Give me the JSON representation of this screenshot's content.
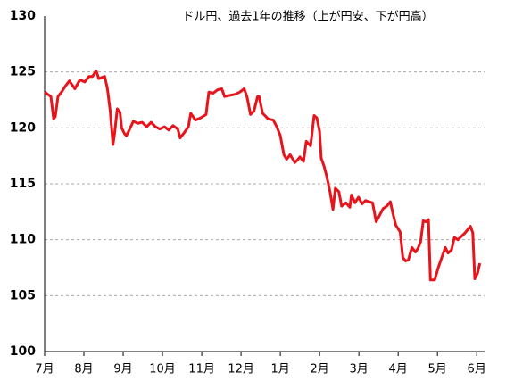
{
  "chart_data": {
    "type": "line",
    "title": "ドル円、過去1年の推移（上が円安、下が円高）",
    "x": [
      0,
      0.16,
      0.23,
      0.27,
      0.34,
      0.45,
      0.52,
      0.63,
      0.77,
      0.9,
      1.02,
      1.13,
      1.22,
      1.31,
      1.38,
      1.53,
      1.6,
      1.67,
      1.74,
      1.78,
      1.85,
      1.92,
      1.96,
      2.03,
      2.08,
      2.14,
      2.26,
      2.37,
      2.48,
      2.6,
      2.71,
      2.82,
      2.93,
      3.05,
      3.16,
      3.27,
      3.39,
      3.45,
      3.54,
      3.66,
      3.72,
      3.84,
      3.97,
      4.11,
      4.18,
      4.29,
      4.4,
      4.51,
      4.58,
      4.7,
      4.85,
      4.97,
      5.08,
      5.15,
      5.24,
      5.33,
      5.42,
      5.46,
      5.55,
      5.69,
      5.82,
      5.91,
      6.0,
      6.09,
      6.16,
      6.25,
      6.37,
      6.43,
      6.5,
      6.59,
      6.66,
      6.77,
      6.86,
      6.93,
      7.0,
      7.04,
      7.11,
      7.18,
      7.27,
      7.34,
      7.4,
      7.49,
      7.56,
      7.67,
      7.77,
      7.81,
      7.9,
      7.99,
      8.08,
      8.17,
      8.26,
      8.35,
      8.44,
      8.53,
      8.62,
      8.71,
      8.8,
      8.87,
      8.94,
      9.05,
      9.12,
      9.19,
      9.26,
      9.35,
      9.44,
      9.5,
      9.57,
      9.64,
      9.71,
      9.77,
      9.82,
      9.93,
      10.02,
      10.11,
      10.2,
      10.27,
      10.36,
      10.43,
      10.52,
      10.61,
      10.7,
      10.77,
      10.84,
      10.9,
      10.95,
      11.02,
      11.08
    ],
    "series": [
      {
        "color": "#e8141c",
        "values": [
          123.2,
          122.8,
          120.8,
          121.0,
          122.8,
          123.3,
          123.7,
          124.2,
          123.5,
          124.3,
          124.1,
          124.6,
          124.6,
          125.1,
          124.4,
          124.6,
          123.5,
          121.5,
          118.5,
          119.5,
          121.7,
          121.4,
          120.0,
          119.5,
          119.3,
          119.7,
          120.6,
          120.4,
          120.5,
          120.1,
          120.5,
          120.1,
          119.9,
          120.1,
          119.8,
          120.2,
          119.9,
          119.1,
          119.5,
          120.1,
          121.3,
          120.7,
          120.9,
          121.2,
          123.2,
          123.1,
          123.4,
          123.5,
          122.8,
          122.9,
          123.0,
          123.2,
          123.5,
          122.8,
          121.2,
          121.5,
          122.8,
          122.8,
          121.3,
          120.8,
          120.7,
          120.1,
          119.3,
          117.6,
          117.2,
          117.6,
          116.9,
          117.1,
          117.4,
          117.0,
          118.8,
          118.4,
          121.1,
          120.9,
          119.7,
          117.3,
          116.6,
          115.7,
          114.2,
          112.7,
          114.6,
          114.3,
          113.0,
          113.3,
          112.9,
          114.0,
          113.3,
          113.8,
          113.2,
          113.5,
          113.4,
          113.3,
          111.6,
          112.2,
          112.8,
          113.0,
          113.4,
          112.3,
          111.3,
          110.7,
          108.4,
          108.1,
          108.2,
          109.3,
          108.9,
          109.2,
          109.8,
          111.7,
          111.6,
          111.8,
          106.4,
          106.4,
          107.5,
          108.4,
          109.3,
          108.8,
          109.1,
          110.2,
          110.0,
          110.3,
          110.6,
          110.9,
          111.2,
          110.6,
          106.5,
          107.0,
          107.9
        ]
      }
    ],
    "xlim": [
      0,
      11.2
    ],
    "xticks": [
      {
        "value": 0,
        "label": "7月"
      },
      {
        "value": 1,
        "label": "8月"
      },
      {
        "value": 2,
        "label": "9月"
      },
      {
        "value": 3,
        "label": "10月"
      },
      {
        "value": 4,
        "label": "11月"
      },
      {
        "value": 5,
        "label": "12月"
      },
      {
        "value": 6,
        "label": "1月"
      },
      {
        "value": 7,
        "label": "2月"
      },
      {
        "value": 8,
        "label": "3月"
      },
      {
        "value": 9,
        "label": "4月"
      },
      {
        "value": 10,
        "label": "5月"
      },
      {
        "value": 11,
        "label": "6月"
      }
    ],
    "ylim": [
      100,
      130
    ],
    "yticks": [
      100,
      105,
      110,
      115,
      120,
      125,
      130
    ],
    "grid": true
  }
}
